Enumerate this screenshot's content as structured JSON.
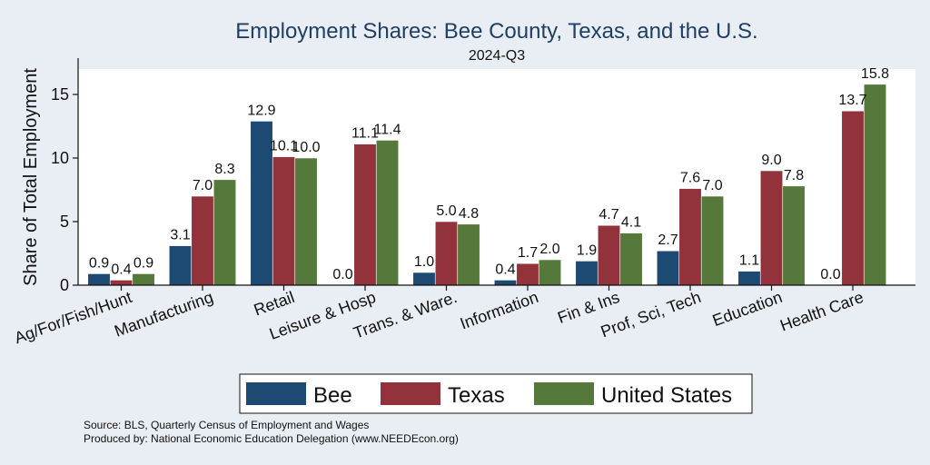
{
  "chart_data": {
    "type": "bar",
    "title": "Employment Shares: Bee County, Texas, and the U.S.",
    "subtitle": "2024-Q3",
    "xlabel": "",
    "ylabel": "Share of Total Employment",
    "ylim": [
      0,
      17
    ],
    "yticks": [
      0,
      5,
      10,
      15
    ],
    "grid": false,
    "legend_placement": "bottom",
    "categories": [
      "Ag/For/Fish/Hunt",
      "Manufacturing",
      "Retail",
      "Leisure & Hosp",
      "Trans. & Ware.",
      "Information",
      "Fin & Ins",
      "Prof, Sci, Tech",
      "Education",
      "Health Care"
    ],
    "series": [
      {
        "name": "Bee",
        "color": "#1c4a72",
        "values": [
          0.9,
          3.1,
          12.9,
          0.0,
          1.0,
          0.4,
          1.9,
          2.7,
          1.1,
          0.0
        ]
      },
      {
        "name": "Texas",
        "color": "#92323a",
        "values": [
          0.4,
          7.0,
          10.1,
          11.1,
          5.0,
          1.7,
          4.7,
          7.6,
          9.0,
          13.7
        ]
      },
      {
        "name": "United States",
        "color": "#55793a",
        "values": [
          0.9,
          8.3,
          10.0,
          11.4,
          4.8,
          2.0,
          4.1,
          7.0,
          7.8,
          15.8
        ]
      }
    ],
    "notes": [
      "Source: BLS, Quarterly Census of Employment and Wages",
      "Produced by: National Economic Education Delegation (www.NEEDEcon.org)"
    ]
  }
}
